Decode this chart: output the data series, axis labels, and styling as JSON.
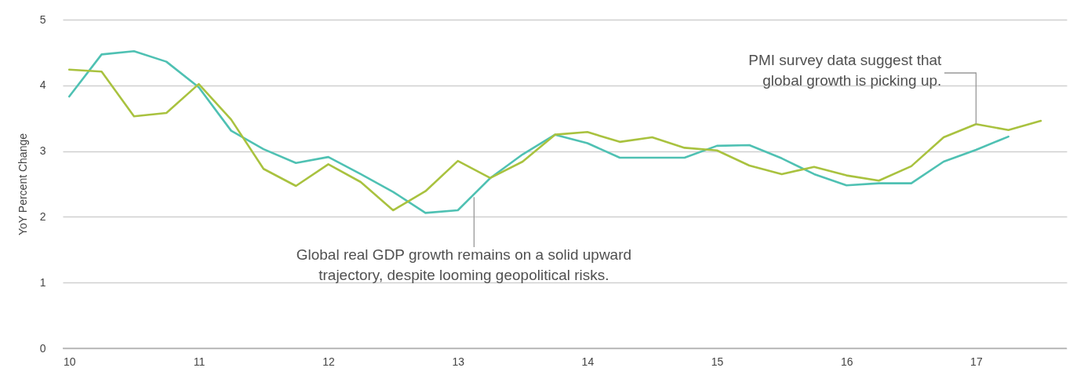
{
  "chart_data": {
    "type": "line",
    "ylabel": "YoY Percent Change",
    "x": [
      10,
      10.25,
      10.5,
      10.75,
      11,
      11.25,
      11.5,
      11.75,
      12,
      12.25,
      12.5,
      12.75,
      13,
      13.25,
      13.5,
      13.75,
      14,
      14.25,
      14.5,
      14.75,
      15,
      15.25,
      15.5,
      15.75,
      16,
      16.25,
      16.5,
      16.75,
      17,
      17.25,
      17.5
    ],
    "series": [
      {
        "color": "#4fc1b3",
        "values": [
          3.83,
          4.47,
          4.52,
          4.36,
          3.97,
          3.31,
          3.03,
          2.82,
          2.91,
          2.65,
          2.38,
          2.06,
          2.1,
          2.59,
          2.95,
          3.25,
          3.12,
          2.9,
          2.9,
          2.9,
          3.08,
          3.09,
          2.89,
          2.65,
          2.48,
          2.51,
          2.51,
          2.84,
          3.02,
          3.22,
          null
        ]
      },
      {
        "color": "#a9c23f",
        "values": [
          4.24,
          4.21,
          3.53,
          3.58,
          4.02,
          3.48,
          2.73,
          2.47,
          2.8,
          2.53,
          2.1,
          2.39,
          2.85,
          2.59,
          2.84,
          3.25,
          3.29,
          3.14,
          3.21,
          3.05,
          3.01,
          2.78,
          2.65,
          2.76,
          2.63,
          2.55,
          2.77,
          3.21,
          3.41,
          3.32,
          3.46
        ]
      }
    ],
    "xlim": [
      9.95,
      17.7
    ],
    "xticks": [
      10,
      11,
      12,
      13,
      14,
      15,
      16,
      17
    ],
    "ylim": [
      0,
      5
    ],
    "yticks": [
      0,
      1,
      2,
      3,
      4,
      5
    ],
    "grid": "y",
    "line_style": "solid",
    "annotations": [
      {
        "text": "Global real GDP growth remains on a solid upward\ntrajectory, despite looming geopolitical risks.",
        "x": 13.125,
        "y": 2.3
      },
      {
        "text": "PMI survey data suggest that\nglobal growth is picking up.",
        "x": 17,
        "y": 3.41
      }
    ]
  }
}
